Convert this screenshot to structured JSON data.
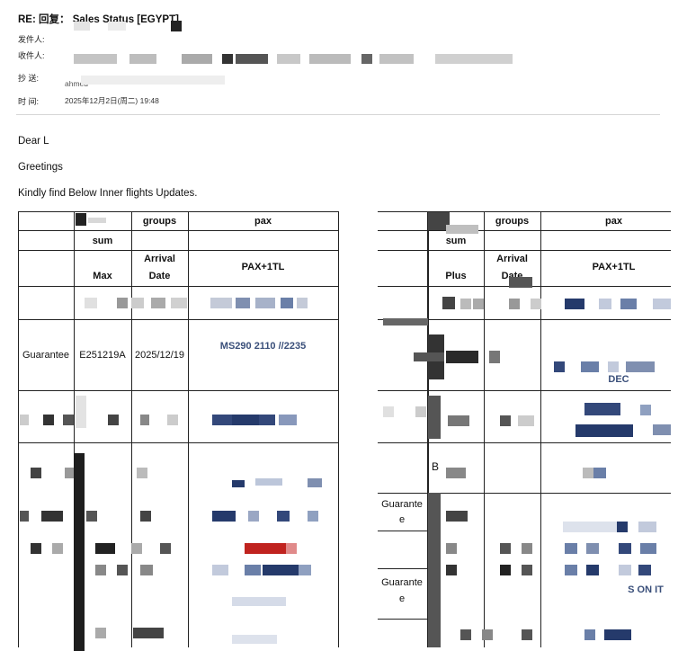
{
  "email": {
    "subject": "RE: 回复： Sales Status [EGYPT]",
    "from_label": "发件人:",
    "to_label": "收件人:",
    "cc_label": "抄   送:",
    "cc_partial": "ahmed",
    "time_label": "时   间:",
    "time_value": "2025年12月2日(周二) 19:48"
  },
  "body": {
    "greeting": "Dear L",
    "greetings_line": "Greetings",
    "intro": "Kindly find Below Inner flights Updates."
  },
  "table_left": {
    "header": {
      "groups": "groups",
      "pax": "pax",
      "sum": "sum",
      "max": "Max",
      "arrival_line1": "Arrival",
      "arrival_line2": "Date",
      "pax_tl": "PAX+1TL"
    },
    "row_guarantee": {
      "type": "Guarantee",
      "code": "E251219A",
      "date": "2025/12/19",
      "flight": "MS290  2110 //2235"
    }
  },
  "table_right": {
    "header": {
      "groups": "groups",
      "pax": "pax",
      "sum": "sum",
      "plus": "Plus",
      "arrival_line1": "Arrival",
      "arrival_line2": "Date",
      "pax_tl": "PAX+1TL"
    },
    "dec_text": "DEC",
    "guarantee_1_line1": "Guarante",
    "guarantee_1_line2": "e",
    "guarantee_2_line1": "Guarante",
    "guarantee_2_line2": "e",
    "fragment_b": "B",
    "fragment_onit": "S ON IT"
  },
  "colors": {
    "blur_navy": "#253a6b",
    "blur_blue": "#6a7fa8",
    "blur_red": "#c0231f",
    "blur_gray": "#9a9a9a",
    "blur_dark": "#2a2a2a"
  }
}
